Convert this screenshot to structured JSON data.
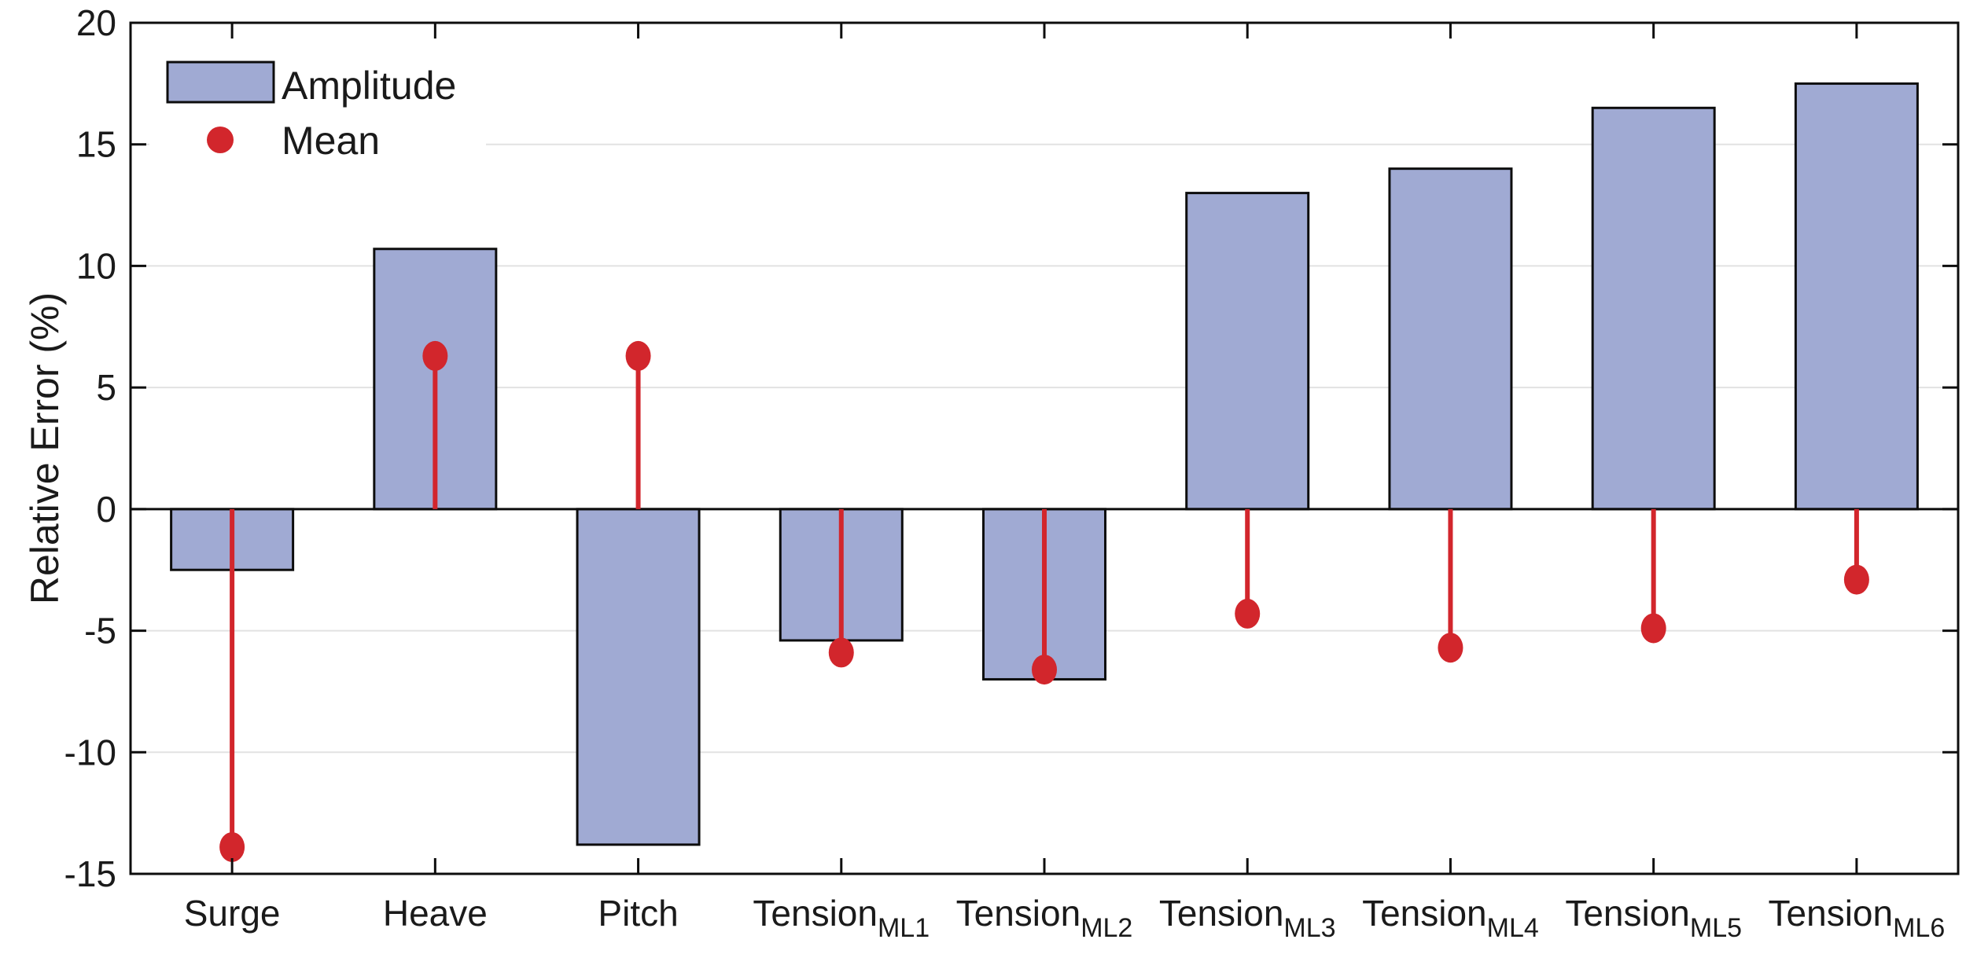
{
  "figure": {
    "background": "#ffffff"
  },
  "chart_data": {
    "type": "bar",
    "subtype": "grouped bar with stem overlay (MATLAB style)",
    "title": "",
    "xlabel": "",
    "ylabel": "Relative Error (%)",
    "ylim": [
      -15,
      20
    ],
    "y_ticks": [
      20,
      15,
      10,
      5,
      0,
      -5,
      -10,
      -15
    ],
    "grid_lines_at": [
      15,
      10,
      5,
      -5,
      -10
    ],
    "grid": "horizontal only, light gray",
    "legend": {
      "position": "top-left inside axes",
      "entries": [
        {
          "label": "Amplitude",
          "marker": "bar-swatch"
        },
        {
          "label": "Mean",
          "marker": "red-dot"
        }
      ]
    },
    "categories": [
      {
        "text": "Surge",
        "sub": ""
      },
      {
        "text": "Heave",
        "sub": ""
      },
      {
        "text": "Pitch",
        "sub": ""
      },
      {
        "text": "Tension",
        "sub": "ML1"
      },
      {
        "text": "Tension",
        "sub": "ML2"
      },
      {
        "text": "Tension",
        "sub": "ML3"
      },
      {
        "text": "Tension",
        "sub": "ML4"
      },
      {
        "text": "Tension",
        "sub": "ML5"
      },
      {
        "text": "Tension",
        "sub": "ML6"
      }
    ],
    "series": [
      {
        "name": "Amplitude",
        "type": "bar",
        "fill_color": "#a0aad3",
        "edge_color": "#0d0d0d",
        "values": [
          -2.5,
          10.7,
          -13.8,
          -5.4,
          -7.0,
          13.0,
          14.0,
          16.5,
          17.5
        ]
      },
      {
        "name": "Mean",
        "type": "stem",
        "color": "#d2262c",
        "values": [
          -13.9,
          6.3,
          6.3,
          -5.9,
          -6.6,
          -4.3,
          -5.7,
          -4.9,
          -2.9
        ]
      }
    ],
    "colors": {
      "bar_fill": "#a0aad3",
      "bar_edge": "#0d0d0d",
      "stem_red": "#d2262c",
      "axis_black": "#0d0d0d",
      "grid_gray": "#e2e2e2",
      "text": "#1a1a1a"
    }
  }
}
